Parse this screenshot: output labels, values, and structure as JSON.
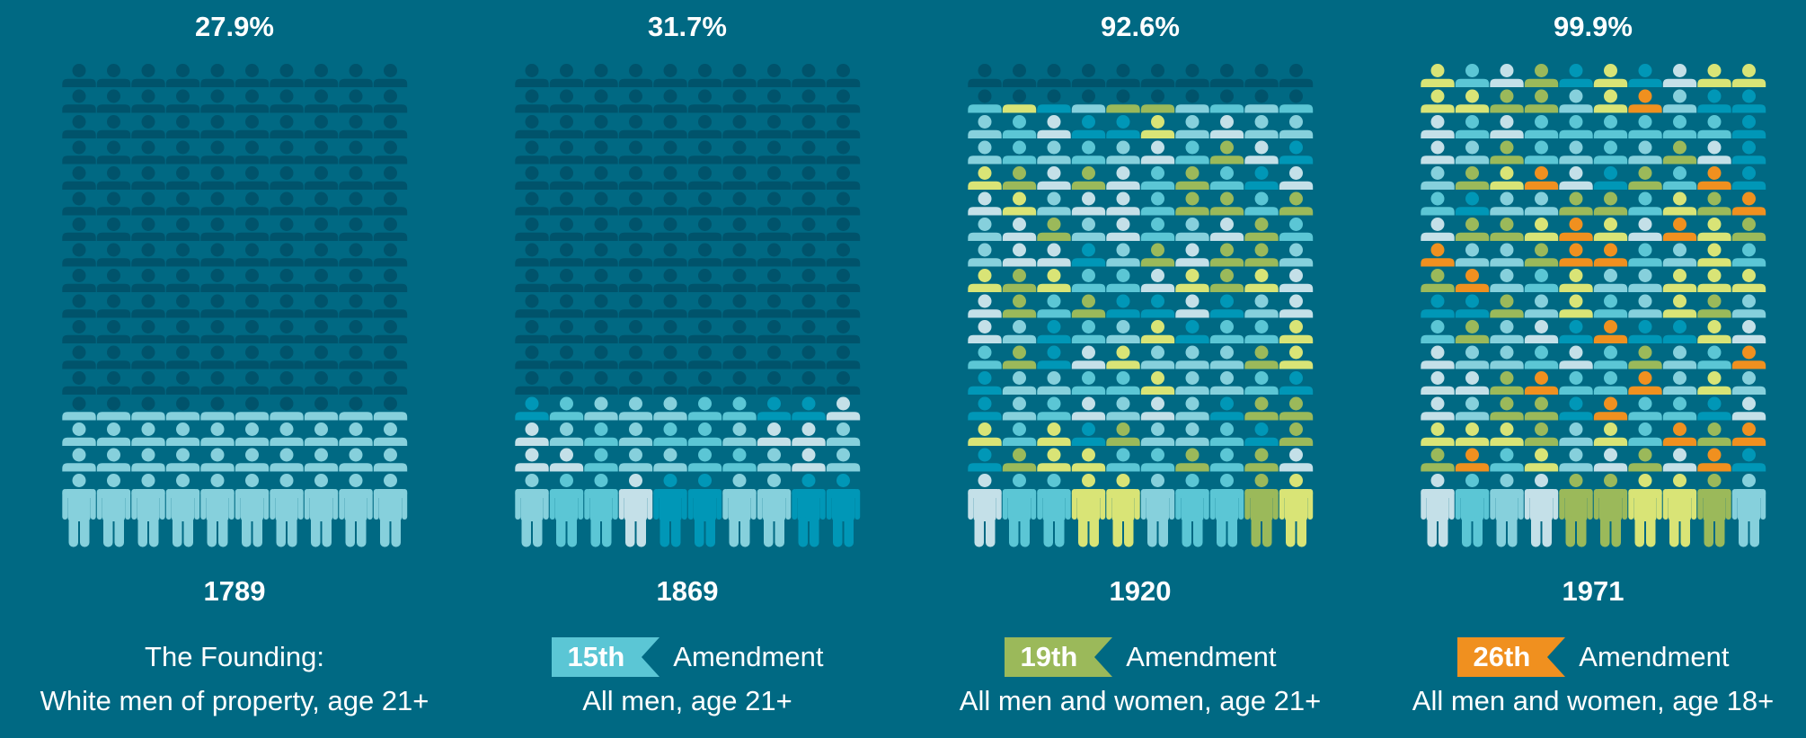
{
  "colors": {
    "background": "#006983",
    "unlit": "#00536b"
  },
  "chart_data": {
    "type": "pictogram",
    "grid": {
      "columns": 10,
      "rows": 17
    },
    "panels": [
      {
        "percent": "27.9%",
        "value": 27.9,
        "year": "1789",
        "amendment": "",
        "heading": "The Founding:",
        "description": "White men of property, age 21+",
        "lit_rows_from_bottom": 3.5,
        "ribbon_color": "",
        "palette": [
          "#86d0dc"
        ]
      },
      {
        "percent": "31.7%",
        "value": 31.7,
        "year": "1869",
        "amendment": "15th",
        "heading": "Amendment",
        "description": "All men, age 21+",
        "lit_rows_from_bottom": 4,
        "ribbon_color": "#5bc6d5",
        "palette": [
          "#86d0dc",
          "#5bc6d5",
          "#c4e0e8",
          "#0097b7"
        ]
      },
      {
        "percent": "92.6%",
        "value": 92.6,
        "year": "1920",
        "amendment": "19th",
        "heading": "Amendment",
        "description": "All men and women, age 21+",
        "lit_rows_from_bottom": 15.5,
        "ribbon_color": "#9bb95a",
        "palette": [
          "#86d0dc",
          "#5bc6d5",
          "#c4e0e8",
          "#0097b7",
          "#9bb95a",
          "#d9e476"
        ]
      },
      {
        "percent": "99.9%",
        "value": 99.9,
        "year": "1971",
        "amendment": "26th",
        "heading": "Amendment",
        "description": "All men and women, age 18+",
        "lit_rows_from_bottom": 17,
        "ribbon_color": "#f0901f",
        "palette": [
          "#86d0dc",
          "#5bc6d5",
          "#c4e0e8",
          "#0097b7",
          "#9bb95a",
          "#d9e476",
          "#f0901f"
        ]
      }
    ]
  }
}
